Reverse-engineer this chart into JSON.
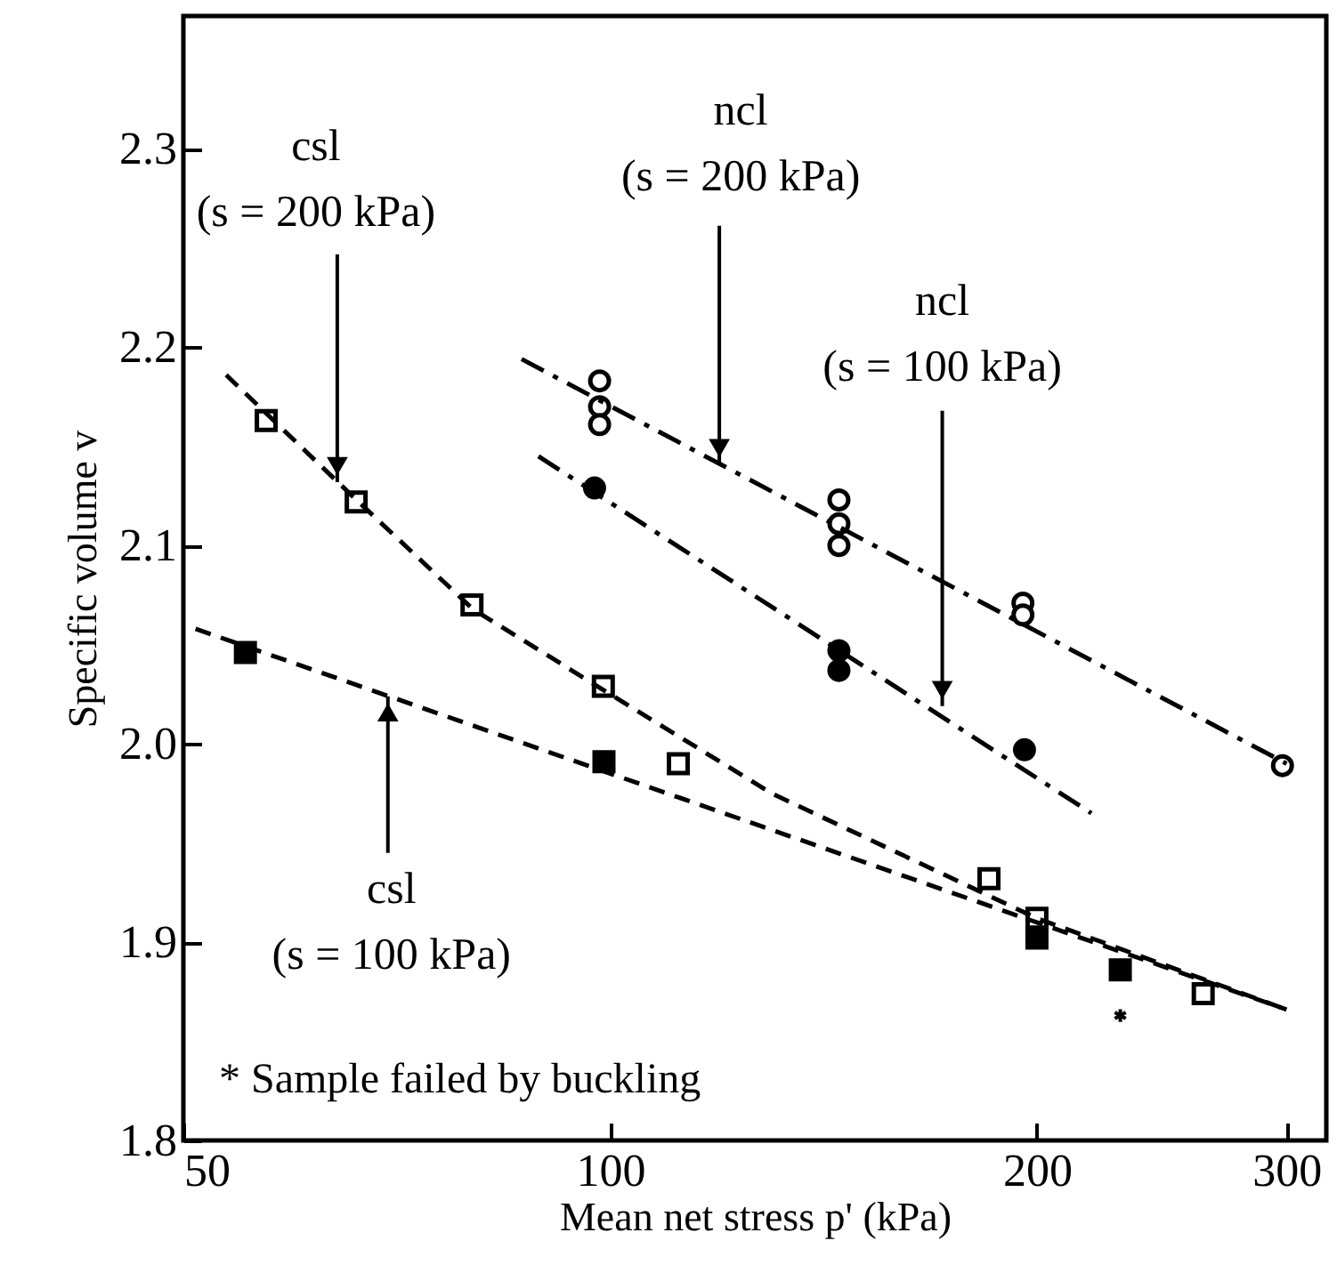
{
  "chart_data": {
    "type": "scatter",
    "xlabel": "Mean net stress  p'  (kPa)",
    "ylabel": "Specific volume v",
    "log": "x",
    "xlim": [
      50,
      320
    ],
    "xticks": [
      50,
      100,
      200,
      300
    ],
    "ylim": [
      1.8,
      2.367
    ],
    "yticks": [
      {
        "value": 1.8,
        "label": "1.8"
      },
      {
        "value": 1.9,
        "label": "1.9"
      },
      {
        "value": 2.0,
        "label": "2.0"
      },
      {
        "value": 2.1,
        "label": "2.1"
      },
      {
        "value": 2.2,
        "label": "2.2"
      },
      {
        "value": 2.3,
        "label": "2.3"
      }
    ],
    "grid": false,
    "series": [
      {
        "marker": "square",
        "color": "#ffffff",
        "x": [
          57.2,
          66.2,
          79.9,
          98.9,
          111.7,
          185,
          200,
          262
        ],
        "values": [
          2.163,
          2.122,
          2.07,
          2.029,
          1.99,
          1.932,
          1.912,
          1.874
        ]
      },
      {
        "marker": "square",
        "color": "#000000",
        "x": [
          55.3,
          99,
          200,
          229
        ],
        "values": [
          2.046,
          1.991,
          1.902,
          1.886
        ]
      },
      {
        "marker": "circle",
        "color": "#ffffff",
        "x": [
          98.3,
          98.3,
          98.3,
          145,
          145,
          145,
          195.5,
          195.5,
          298
        ],
        "values": [
          2.183,
          2.17,
          2.161,
          2.123,
          2.111,
          2.1,
          2.071,
          2.065,
          1.989
        ]
      },
      {
        "marker": "circle",
        "color": "#000000",
        "x": [
          97.5,
          145,
          145,
          196
        ],
        "values": [
          2.129,
          2.047,
          2.037,
          1.997
        ]
      },
      {
        "marker": "cross",
        "color": "#000000",
        "x": [
          229
        ],
        "values": [
          1.863
        ]
      },
      {
        "type": "line",
        "line_style": "dashed",
        "color": "#000000",
        "x": [
          53.6,
          66,
          80,
          100,
          130,
          200,
          300
        ],
        "values": [
          2.186,
          2.124,
          2.068,
          2.025,
          1.975,
          1.912,
          1.866
        ]
      },
      {
        "type": "line",
        "line_style": "dashed",
        "color": "#000000",
        "x": [
          51,
          300
        ],
        "values": [
          2.058,
          1.866
        ]
      },
      {
        "type": "line",
        "line_style": "dashdot",
        "color": "#000000",
        "x": [
          86.6,
          300
        ],
        "values": [
          2.194,
          1.99
        ]
      },
      {
        "type": "line",
        "line_style": "dashdot",
        "color": "#000000",
        "x": [
          89,
          218.5
        ],
        "values": [
          2.145,
          1.965
        ]
      }
    ],
    "annotations": [
      {
        "text": "csl\n(s = 200 kPa)",
        "x": 64.2,
        "y": 2.132
      },
      {
        "text": "ncl\n(s = 200 kPa)",
        "x": 119.4,
        "y": 2.141
      },
      {
        "text": "ncl\n(s = 100 kPa)",
        "x": 171.5,
        "y": 2.019
      },
      {
        "text": "csl\n(s = 100 kPa)",
        "x": 69.7,
        "y": 2.024
      },
      "* Sample failed by buckling"
    ]
  }
}
